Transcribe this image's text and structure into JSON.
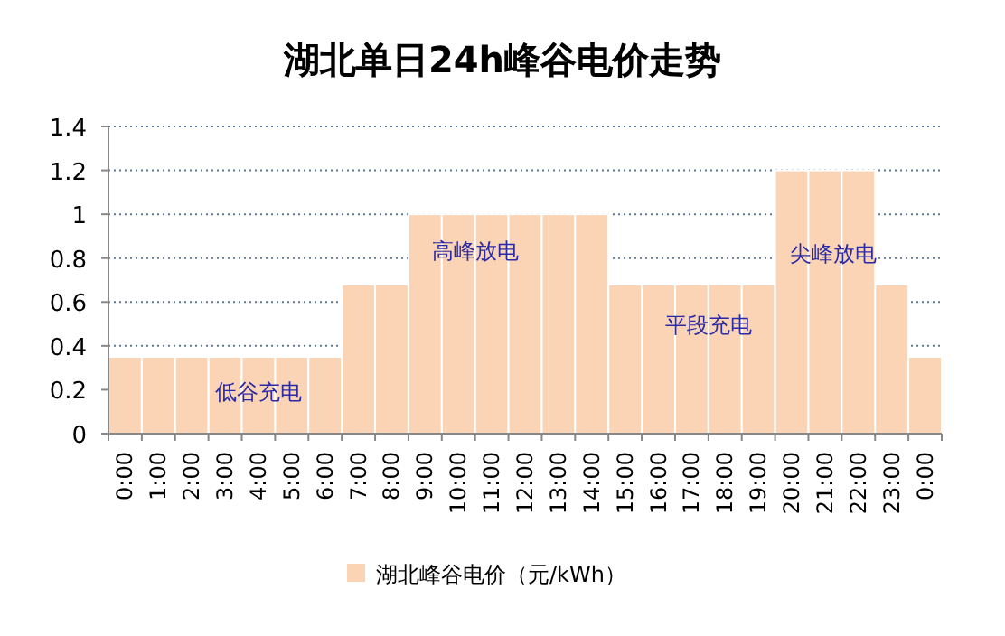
{
  "chart_data": {
    "type": "bar",
    "title": "湖北单日24h峰谷电价走势",
    "categories": [
      "0:00",
      "1:00",
      "2:00",
      "3:00",
      "4:00",
      "5:00",
      "6:00",
      "7:00",
      "8:00",
      "9:00",
      "10:00",
      "11:00",
      "12:00",
      "13:00",
      "14:00",
      "15:00",
      "16:00",
      "17:00",
      "18:00",
      "19:00",
      "20:00",
      "21:00",
      "22:00",
      "23:00",
      "0:00"
    ],
    "series": [
      {
        "name": "湖北峰谷电价（元/kWh）",
        "color": "#fad4b4",
        "values": [
          0.35,
          0.35,
          0.35,
          0.35,
          0.35,
          0.35,
          0.35,
          0.68,
          0.68,
          1,
          1,
          1,
          1,
          1,
          1,
          0.68,
          0.68,
          0.68,
          0.68,
          0.68,
          1.2,
          1.2,
          1.2,
          0.68,
          0.35
        ]
      }
    ],
    "ylim": [
      0,
      1.4
    ],
    "yticks": [
      0,
      0.2,
      0.4,
      0.6,
      0.8,
      1,
      1.2,
      1.4
    ],
    "grid": "y",
    "legend": "bottom",
    "annotations": [
      "低谷充电",
      "高峰放电",
      "平段充电",
      "尖峰放电"
    ]
  }
}
